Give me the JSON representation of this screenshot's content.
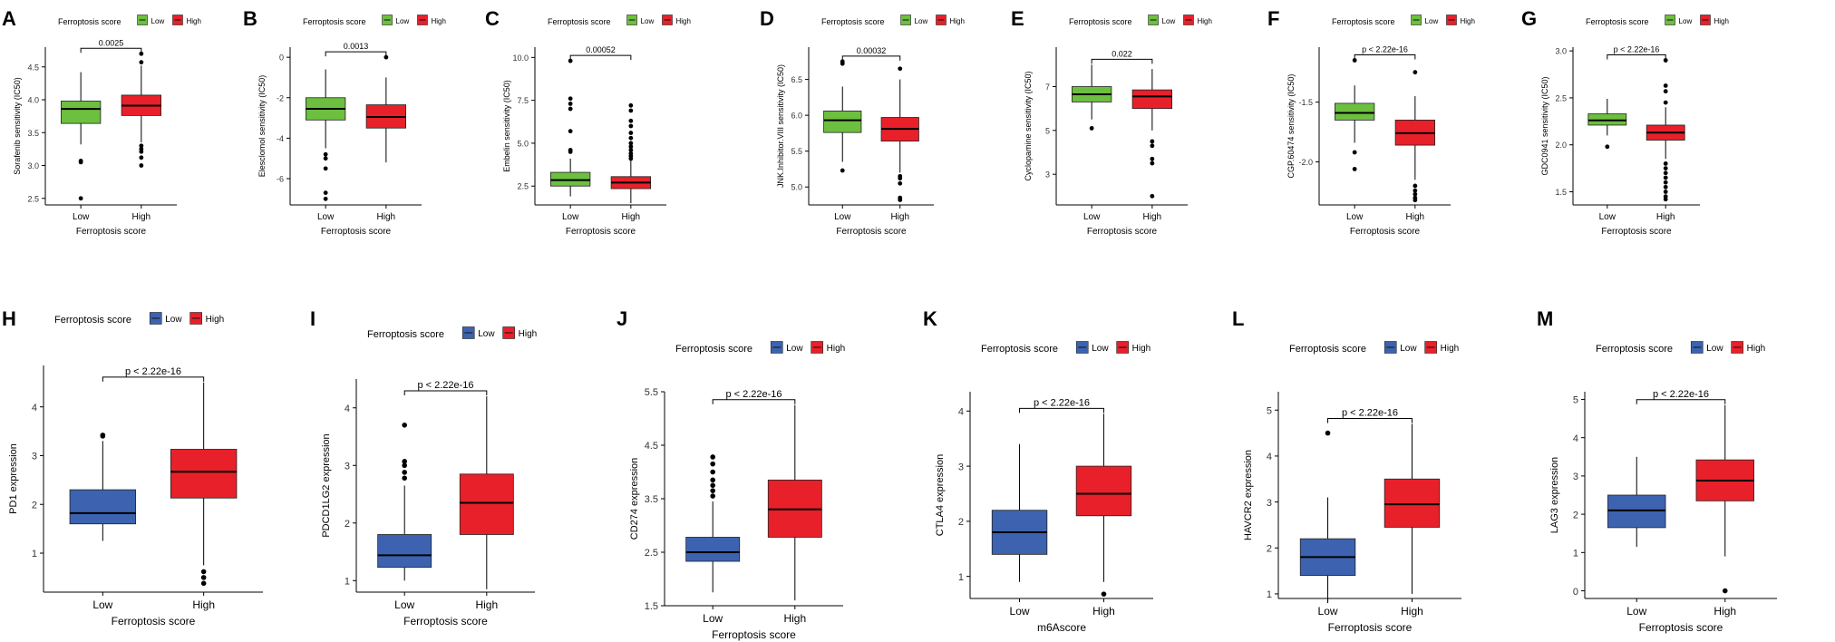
{
  "colors": {
    "green": "#6cbf3f",
    "red": "#e8202a",
    "blue": "#3d63b0",
    "line": "#000000"
  },
  "chart_data": [
    {
      "panel": "A",
      "type": "boxplot",
      "legend_title": "Ferroptosis score",
      "legend_labels": [
        "Low",
        "High"
      ],
      "palette": "green",
      "ylabel": "Sorafenib sensitivity (IC50)",
      "xlabel": "Ferroptosis score",
      "categories": [
        "Low",
        "High"
      ],
      "ylim": [
        2.4,
        4.8
      ],
      "yticks": [
        2.5,
        3.0,
        3.5,
        4.0,
        4.5
      ],
      "ytick_labels": [
        "2.5",
        "3.0",
        "3.5",
        "4.0",
        "4.5"
      ],
      "pvalue": "0.0025",
      "boxes": [
        {
          "min": 3.32,
          "q1": 3.64,
          "median": 3.86,
          "q3": 3.98,
          "max": 4.42,
          "outliers": [
            3.07,
            3.05,
            2.5
          ]
        },
        {
          "min": 3.35,
          "q1": 3.76,
          "median": 3.91,
          "q3": 4.07,
          "max": 4.52,
          "outliers": [
            4.7,
            4.57,
            3.3,
            3.25,
            3.21,
            3.12,
            3.0
          ]
        }
      ]
    },
    {
      "panel": "B",
      "type": "boxplot",
      "legend_title": "Ferroptosis score",
      "legend_labels": [
        "Low",
        "High"
      ],
      "palette": "green",
      "ylabel": "Elesclomol sensitivity (IC50)",
      "xlabel": "Ferroptosis score",
      "categories": [
        "Low",
        "High"
      ],
      "ylim": [
        -7.3,
        0.5
      ],
      "yticks": [
        -6,
        -4,
        -2,
        0
      ],
      "ytick_labels": [
        "-6",
        "-4",
        "-2",
        "0"
      ],
      "pvalue": "0.0013",
      "boxes": [
        {
          "min": -4.5,
          "q1": -3.1,
          "median": -2.55,
          "q3": -2.0,
          "max": -0.6,
          "outliers": [
            -4.8,
            -5.0,
            -5.5,
            -6.7,
            -7.0
          ]
        },
        {
          "min": -5.2,
          "q1": -3.5,
          "median": -2.95,
          "q3": -2.35,
          "max": -1.0,
          "outliers": [
            0.0
          ]
        }
      ]
    },
    {
      "panel": "C",
      "type": "boxplot",
      "legend_title": "Ferroptosis score",
      "legend_labels": [
        "Low",
        "High"
      ],
      "palette": "green",
      "ylabel": "Embelin sensitivity (IC50)",
      "xlabel": "Ferroptosis score",
      "categories": [
        "Low",
        "High"
      ],
      "ylim": [
        1.4,
        10.6
      ],
      "yticks": [
        2.5,
        5.0,
        7.5,
        10.0
      ],
      "ytick_labels": [
        "2.5",
        "5.0",
        "7.5",
        "10.0"
      ],
      "pvalue": "0.00052",
      "boxes": [
        {
          "min": 1.9,
          "q1": 2.5,
          "median": 2.85,
          "q3": 3.3,
          "max": 4.1,
          "outliers": [
            4.5,
            4.6,
            5.7,
            7.0,
            7.3,
            7.6,
            9.8
          ]
        },
        {
          "min": 1.5,
          "q1": 2.35,
          "median": 2.7,
          "q3": 3.05,
          "max": 4.0,
          "outliers": [
            4.1,
            4.25,
            4.4,
            4.6,
            4.8,
            5.0,
            5.3,
            5.6,
            6.0,
            6.3,
            6.9,
            7.2
          ]
        }
      ]
    },
    {
      "panel": "D",
      "type": "boxplot",
      "legend_title": "Ferroptosis score",
      "legend_labels": [
        "Low",
        "High"
      ],
      "palette": "green",
      "ylabel": "JNK.Inhibitor.VIII sensitivity (IC50)",
      "xlabel": "Ferroptosis score",
      "categories": [
        "Low",
        "High"
      ],
      "ylim": [
        4.75,
        6.95
      ],
      "yticks": [
        5.0,
        5.5,
        6.0,
        6.5
      ],
      "ytick_labels": [
        "5.0",
        "5.5",
        "6.0",
        "6.5"
      ],
      "pvalue": "0.00032",
      "boxes": [
        {
          "min": 5.35,
          "q1": 5.76,
          "median": 5.93,
          "q3": 6.06,
          "max": 6.4,
          "outliers": [
            6.75,
            6.72,
            5.23
          ]
        },
        {
          "min": 5.2,
          "q1": 5.64,
          "median": 5.81,
          "q3": 5.97,
          "max": 6.5,
          "outliers": [
            6.65,
            5.15,
            5.12,
            5.05,
            4.85,
            4.82
          ]
        }
      ]
    },
    {
      "panel": "E",
      "type": "boxplot",
      "legend_title": "Ferroptosis score",
      "legend_labels": [
        "Low",
        "High"
      ],
      "palette": "green",
      "ylabel": "Cyclopamine sensitivity (IC50)",
      "xlabel": "Ferroptosis score",
      "categories": [
        "Low",
        "High"
      ],
      "ylim": [
        1.6,
        8.8
      ],
      "yticks": [
        3,
        5,
        7
      ],
      "ytick_labels": [
        "3",
        "5",
        "7"
      ],
      "pvalue": "0.022",
      "boxes": [
        {
          "min": 5.5,
          "q1": 6.3,
          "median": 6.65,
          "q3": 7.0,
          "max": 8.0,
          "outliers": [
            5.1
          ]
        },
        {
          "min": 5.0,
          "q1": 6.0,
          "median": 6.55,
          "q3": 6.85,
          "max": 7.8,
          "outliers": [
            4.5,
            4.3,
            3.7,
            3.5,
            2.0
          ]
        }
      ]
    },
    {
      "panel": "F",
      "type": "boxplot",
      "legend_title": "Ferroptosis score",
      "legend_labels": [
        "Low",
        "High"
      ],
      "palette": "green",
      "ylabel": "CGP.60474 sensitivity (IC50)",
      "xlabel": "Ferroptosis score",
      "categories": [
        "Low",
        "High"
      ],
      "ylim": [
        -2.36,
        -1.04
      ],
      "yticks": [
        -2.0,
        -1.5
      ],
      "ytick_labels": [
        "-2.0",
        "-1.5"
      ],
      "pvalue": "p < 2.22e-16",
      "boxes": [
        {
          "min": -1.84,
          "q1": -1.65,
          "median": -1.59,
          "q3": -1.51,
          "max": -1.36,
          "outliers": [
            -1.15,
            -1.92,
            -2.06
          ]
        },
        {
          "min": -2.15,
          "q1": -1.86,
          "median": -1.76,
          "q3": -1.65,
          "max": -1.45,
          "outliers": [
            -1.25,
            -2.2,
            -2.24,
            -2.27,
            -2.3,
            -2.32
          ]
        }
      ]
    },
    {
      "panel": "G",
      "type": "boxplot",
      "legend_title": "Ferroptosis score",
      "legend_labels": [
        "Low",
        "High"
      ],
      "palette": "green",
      "ylabel": "GDC0941 sensitivity (IC50)",
      "xlabel": "Ferroptosis score",
      "categories": [
        "Low",
        "High"
      ],
      "ylim": [
        1.36,
        3.04
      ],
      "yticks": [
        1.5,
        2.0,
        2.5,
        3.0
      ],
      "ytick_labels": [
        "1.5",
        "2.0",
        "2.5",
        "3.0"
      ],
      "pvalue": "p < 2.22e-16",
      "boxes": [
        {
          "min": 2.1,
          "q1": 2.21,
          "median": 2.26,
          "q3": 2.33,
          "max": 2.49,
          "outliers": [
            1.98
          ]
        },
        {
          "min": 1.85,
          "q1": 2.05,
          "median": 2.13,
          "q3": 2.21,
          "max": 2.4,
          "outliers": [
            2.9,
            2.63,
            2.57,
            2.45,
            1.8,
            1.75,
            1.7,
            1.65,
            1.6,
            1.55,
            1.5,
            1.45,
            1.42
          ]
        }
      ]
    },
    {
      "panel": "H",
      "type": "boxplot",
      "legend_title": "Ferroptosis score",
      "legend_labels": [
        "Low",
        "High"
      ],
      "palette": "blue",
      "ylabel": "PD1 expression",
      "xlabel": "Ferroptosis score",
      "categories": [
        "Low",
        "High"
      ],
      "ylim": [
        0.2,
        4.85
      ],
      "yticks": [
        1,
        2,
        3,
        4
      ],
      "ytick_labels": [
        "1",
        "2",
        "3",
        "4"
      ],
      "pvalue": "p < 2.22e-16",
      "boxes": [
        {
          "min": 1.25,
          "q1": 1.6,
          "median": 1.82,
          "q3": 2.3,
          "max": 3.3,
          "outliers": [
            3.42,
            3.4
          ]
        },
        {
          "min": 0.75,
          "q1": 2.13,
          "median": 2.67,
          "q3": 3.13,
          "max": 4.5,
          "outliers": [
            0.62,
            0.5,
            0.38
          ]
        }
      ]
    },
    {
      "panel": "I",
      "type": "boxplot",
      "legend_title": "Ferroptosis score",
      "legend_labels": [
        "Low",
        "High"
      ],
      "palette": "blue",
      "ylabel": "PDCD1LG2 expression",
      "xlabel": "Ferroptosis score",
      "categories": [
        "Low",
        "High"
      ],
      "ylim": [
        0.8,
        4.5
      ],
      "yticks": [
        1,
        2,
        3,
        4
      ],
      "ytick_labels": [
        "1",
        "2",
        "3",
        "4"
      ],
      "pvalue": "p < 2.22e-16",
      "boxes": [
        {
          "min": 1.0,
          "q1": 1.23,
          "median": 1.44,
          "q3": 1.8,
          "max": 2.65,
          "outliers": [
            2.78,
            2.88,
            3.0,
            3.07,
            3.7
          ]
        },
        {
          "min": 0.85,
          "q1": 1.8,
          "median": 2.35,
          "q3": 2.85,
          "max": 4.2,
          "outliers": []
        }
      ]
    },
    {
      "panel": "J",
      "type": "boxplot",
      "legend_title": "Ferroptosis score",
      "legend_labels": [
        "Low",
        "High"
      ],
      "palette": "blue",
      "ylabel": "CD274 expression",
      "xlabel": "Ferroptosis score",
      "categories": [
        "Low",
        "High"
      ],
      "ylim": [
        1.5,
        5.5
      ],
      "yticks": [
        1.5,
        2.5,
        3.5,
        4.5,
        5.5
      ],
      "ytick_labels": [
        "1.5",
        "2.5",
        "3.5",
        "4.5",
        "5.5"
      ],
      "pvalue": "p < 2.22e-16",
      "boxes": [
        {
          "min": 1.75,
          "q1": 2.33,
          "median": 2.5,
          "q3": 2.78,
          "max": 3.45,
          "outliers": [
            3.55,
            3.65,
            3.75,
            3.85,
            4.0,
            4.15,
            4.28
          ]
        },
        {
          "min": 1.6,
          "q1": 2.78,
          "median": 3.3,
          "q3": 3.85,
          "max": 5.25,
          "outliers": []
        }
      ]
    },
    {
      "panel": "K",
      "type": "boxplot",
      "legend_title": "Ferroptosis score",
      "legend_labels": [
        "Low",
        "High"
      ],
      "palette": "blue",
      "ylabel": "CTLA4 expression",
      "xlabel": "m6Ascore",
      "categories": [
        "Low",
        "High"
      ],
      "ylim": [
        0.6,
        4.35
      ],
      "yticks": [
        1,
        2,
        3,
        4
      ],
      "ytick_labels": [
        "1",
        "2",
        "3",
        "4"
      ],
      "pvalue": "p < 2.22e-16",
      "boxes": [
        {
          "min": 0.9,
          "q1": 1.4,
          "median": 1.8,
          "q3": 2.2,
          "max": 3.4,
          "outliers": []
        },
        {
          "min": 0.9,
          "q1": 2.1,
          "median": 2.5,
          "q3": 3.0,
          "max": 3.95,
          "outliers": [
            0.68
          ]
        }
      ]
    },
    {
      "panel": "L",
      "type": "boxplot",
      "legend_title": "Ferroptosis score",
      "legend_labels": [
        "Low",
        "High"
      ],
      "palette": "blue",
      "ylabel": "HAVCR2 expression",
      "xlabel": "Ferroptosis score",
      "categories": [
        "Low",
        "High"
      ],
      "ylim": [
        0.9,
        5.4
      ],
      "yticks": [
        1,
        2,
        3,
        4,
        5
      ],
      "ytick_labels": [
        "1",
        "2",
        "3",
        "4",
        "5"
      ],
      "pvalue": "p < 2.22e-16",
      "boxes": [
        {
          "min": 0.8,
          "q1": 1.4,
          "median": 1.8,
          "q3": 2.2,
          "max": 3.1,
          "outliers": [
            4.5
          ]
        },
        {
          "min": 1.0,
          "q1": 2.45,
          "median": 2.95,
          "q3": 3.5,
          "max": 4.7,
          "outliers": []
        }
      ]
    },
    {
      "panel": "M",
      "type": "boxplot",
      "legend_title": "Ferroptosis score",
      "legend_labels": [
        "Low",
        "High"
      ],
      "palette": "blue",
      "ylabel": "LAG3 expression",
      "xlabel": "Ferroptosis score",
      "categories": [
        "Low",
        "High"
      ],
      "ylim": [
        -0.2,
        5.2
      ],
      "yticks": [
        0,
        1,
        2,
        3,
        4,
        5
      ],
      "ytick_labels": [
        "0",
        "1",
        "2",
        "3",
        "4",
        "5"
      ],
      "pvalue": "p < 2.22e-16",
      "boxes": [
        {
          "min": 1.15,
          "q1": 1.65,
          "median": 2.1,
          "q3": 2.5,
          "max": 3.5,
          "outliers": []
        },
        {
          "min": 0.9,
          "q1": 2.35,
          "median": 2.88,
          "q3": 3.42,
          "max": 4.85,
          "outliers": [
            0.0
          ]
        }
      ]
    }
  ]
}
